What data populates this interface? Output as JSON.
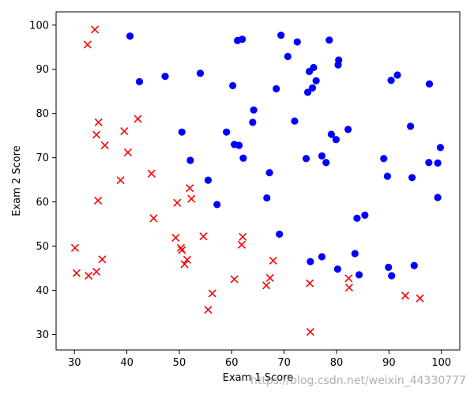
{
  "chart_data": {
    "type": "scatter",
    "xlabel": "Exam 1 Score",
    "ylabel": "Exam 2 Score",
    "xlim": [
      26.5,
      103.5
    ],
    "ylim": [
      26.5,
      103.0
    ],
    "xticks": [
      30,
      40,
      50,
      60,
      70,
      80,
      90,
      100
    ],
    "yticks": [
      30,
      40,
      50,
      60,
      70,
      80,
      90,
      100
    ],
    "grid": false,
    "series": [
      {
        "marker": "circle",
        "color": "#0000ff",
        "points": [
          [
            40.6,
            97.5
          ],
          [
            42.4,
            87.2
          ],
          [
            47.3,
            88.4
          ],
          [
            50.5,
            75.8
          ],
          [
            52.1,
            69.4
          ],
          [
            54.0,
            89.1
          ],
          [
            55.5,
            64.9
          ],
          [
            57.2,
            59.4
          ],
          [
            59.0,
            75.8
          ],
          [
            60.2,
            86.3
          ],
          [
            60.5,
            73.0
          ],
          [
            61.1,
            96.5
          ],
          [
            61.4,
            72.8
          ],
          [
            62.0,
            96.8
          ],
          [
            62.2,
            69.9
          ],
          [
            64.0,
            78.0
          ],
          [
            64.2,
            80.8
          ],
          [
            66.7,
            60.9
          ],
          [
            67.2,
            66.6
          ],
          [
            68.5,
            85.6
          ],
          [
            69.1,
            52.7
          ],
          [
            69.4,
            97.7
          ],
          [
            70.7,
            92.9
          ],
          [
            72.0,
            78.3
          ],
          [
            72.5,
            96.2
          ],
          [
            74.2,
            69.8
          ],
          [
            74.5,
            84.8
          ],
          [
            74.8,
            89.5
          ],
          [
            75.0,
            46.5
          ],
          [
            75.4,
            85.8
          ],
          [
            75.6,
            90.4
          ],
          [
            76.1,
            87.4
          ],
          [
            77.2,
            47.6
          ],
          [
            77.2,
            70.4
          ],
          [
            78.0,
            68.9
          ],
          [
            78.6,
            96.6
          ],
          [
            79.0,
            75.3
          ],
          [
            79.9,
            74.1
          ],
          [
            80.2,
            44.8
          ],
          [
            80.3,
            91.0
          ],
          [
            80.4,
            92.1
          ],
          [
            82.2,
            76.4
          ],
          [
            83.5,
            48.3
          ],
          [
            83.9,
            56.3
          ],
          [
            84.3,
            43.5
          ],
          [
            85.4,
            57.0
          ],
          [
            89.0,
            69.8
          ],
          [
            89.7,
            65.8
          ],
          [
            89.9,
            45.2
          ],
          [
            90.4,
            87.5
          ],
          [
            90.5,
            43.3
          ],
          [
            91.6,
            88.7
          ],
          [
            94.1,
            77.1
          ],
          [
            94.4,
            65.5
          ],
          [
            94.8,
            45.6
          ],
          [
            97.6,
            68.9
          ],
          [
            97.7,
            86.7
          ],
          [
            99.3,
            68.8
          ],
          [
            99.3,
            61.0
          ],
          [
            99.8,
            72.3
          ]
        ]
      },
      {
        "marker": "x",
        "color": "#ff0000",
        "points": [
          [
            30.1,
            49.6
          ],
          [
            30.4,
            43.9
          ],
          [
            32.5,
            95.6
          ],
          [
            32.7,
            43.3
          ],
          [
            33.9,
            99.0
          ],
          [
            34.2,
            44.2
          ],
          [
            34.2,
            75.2
          ],
          [
            34.5,
            60.3
          ],
          [
            34.6,
            78.0
          ],
          [
            35.3,
            47.0
          ],
          [
            35.8,
            72.8
          ],
          [
            38.8,
            64.9
          ],
          [
            39.5,
            76.0
          ],
          [
            40.2,
            71.2
          ],
          [
            42.1,
            78.8
          ],
          [
            44.7,
            66.4
          ],
          [
            45.1,
            56.3
          ],
          [
            49.3,
            51.9
          ],
          [
            49.6,
            59.8
          ],
          [
            50.3,
            49.6
          ],
          [
            50.5,
            49.1
          ],
          [
            51.0,
            45.9
          ],
          [
            51.5,
            46.9
          ],
          [
            52.0,
            63.1
          ],
          [
            52.3,
            60.7
          ],
          [
            54.6,
            52.2
          ],
          [
            55.5,
            35.6
          ],
          [
            56.3,
            39.3
          ],
          [
            60.5,
            42.5
          ],
          [
            61.9,
            50.3
          ],
          [
            62.1,
            52.1
          ],
          [
            66.6,
            41.1
          ],
          [
            67.3,
            42.8
          ],
          [
            67.9,
            46.7
          ],
          [
            74.9,
            41.6
          ],
          [
            75.0,
            30.6
          ],
          [
            82.3,
            42.7
          ],
          [
            82.4,
            40.6
          ],
          [
            93.1,
            38.8
          ],
          [
            95.9,
            38.2
          ]
        ]
      }
    ]
  },
  "watermark": "https://blog.csdn.net/weixin_44330777"
}
